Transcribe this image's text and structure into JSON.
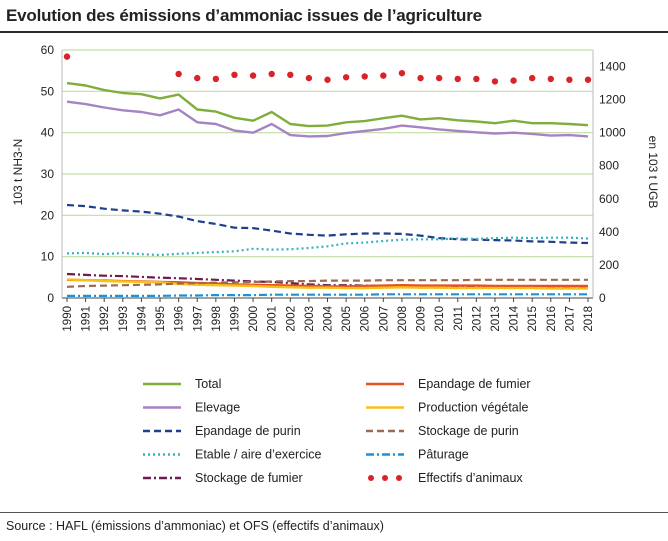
{
  "page": {
    "title": "Evolution des émissions d’ammoniac issues de l’agriculture",
    "source": "Source : HAFL (émissions d’ammoniac) et OFS (effectifs d’animaux)"
  },
  "chart_data": {
    "type": "line",
    "title": "Evolution des émissions d’ammoniac issues de l’agriculture",
    "ylabel": "103 t NH3-N",
    "y2label": "en 103 t UGB",
    "ylim": [
      0,
      60
    ],
    "y2lim": [
      0,
      1500
    ],
    "yticks": [
      0,
      10,
      20,
      30,
      40,
      50,
      60
    ],
    "y2ticks": [
      0,
      200,
      400,
      600,
      800,
      1000,
      1200,
      1400
    ],
    "grid": true,
    "legend_position": "bottom",
    "x": [
      "1990",
      "1991",
      "1992",
      "1993",
      "1994",
      "1995",
      "1996",
      "1997",
      "1998",
      "1999",
      "2000",
      "2001",
      "2002",
      "2003",
      "2004",
      "2005",
      "2006",
      "2007",
      "2008",
      "2009",
      "2010",
      "2011",
      "2012",
      "2013",
      "2014",
      "2015",
      "2016",
      "2017",
      "2018"
    ],
    "series": [
      {
        "name": "Total",
        "color": "#7fae3c",
        "style": "solid",
        "axis": "left",
        "values": [
          52.0,
          51.4,
          50.3,
          49.6,
          49.3,
          48.3,
          49.2,
          45.6,
          45.1,
          43.6,
          42.9,
          45.0,
          42.1,
          41.6,
          41.7,
          42.5,
          42.8,
          43.5,
          44.1,
          43.2,
          43.5,
          43.0,
          42.7,
          42.3,
          42.9,
          42.3,
          42.3,
          42.1,
          41.8
        ]
      },
      {
        "name": "Elevage",
        "color": "#a584c4",
        "style": "solid",
        "axis": "left",
        "values": [
          47.5,
          46.9,
          46.1,
          45.4,
          45.0,
          44.2,
          45.6,
          42.5,
          42.1,
          40.5,
          40.0,
          42.1,
          39.4,
          39.1,
          39.2,
          39.9,
          40.4,
          40.9,
          41.7,
          41.3,
          40.8,
          40.4,
          40.1,
          39.8,
          40.0,
          39.7,
          39.3,
          39.4,
          39.1
        ]
      },
      {
        "name": "Epandage de purin",
        "color": "#1e3f8c",
        "style": "dashed",
        "axis": "left",
        "values": [
          22.5,
          22.2,
          21.6,
          21.2,
          20.9,
          20.4,
          19.7,
          18.6,
          17.9,
          17.0,
          16.9,
          16.3,
          15.6,
          15.3,
          15.1,
          15.4,
          15.6,
          15.6,
          15.5,
          15.1,
          14.5,
          14.2,
          14.1,
          14.0,
          13.9,
          13.7,
          13.6,
          13.4,
          13.3
        ]
      },
      {
        "name": "Etable / aire d’exercice",
        "color": "#36b0c2",
        "style": "dotted",
        "axis": "left",
        "values": [
          10.8,
          10.9,
          10.6,
          10.9,
          10.6,
          10.4,
          10.7,
          10.9,
          11.1,
          11.3,
          11.9,
          11.7,
          11.8,
          12.1,
          12.5,
          13.2,
          13.4,
          13.8,
          14.1,
          14.2,
          14.2,
          14.4,
          14.3,
          14.5,
          14.6,
          14.5,
          14.6,
          14.6,
          14.4
        ]
      },
      {
        "name": "Stockage de fumier",
        "color": "#6b1d4e",
        "style": "dashdot",
        "axis": "left",
        "values": [
          5.8,
          5.6,
          5.4,
          5.3,
          5.1,
          4.9,
          4.8,
          4.6,
          4.4,
          4.2,
          4.0,
          3.9,
          3.6,
          3.3,
          3.1,
          3.1,
          3.0,
          3.0,
          2.9,
          2.9,
          2.8,
          2.8,
          2.7,
          2.6,
          2.6,
          2.5,
          2.5,
          2.4,
          2.4
        ]
      },
      {
        "name": "Epandage de fumier",
        "color": "#e8501c",
        "style": "solid",
        "axis": "left",
        "values": [
          4.4,
          4.3,
          4.2,
          4.1,
          4.0,
          3.9,
          3.8,
          3.6,
          3.5,
          3.3,
          3.2,
          3.1,
          3.0,
          2.9,
          2.8,
          2.8,
          2.9,
          3.0,
          3.1,
          3.0,
          3.0,
          3.0,
          3.0,
          2.9,
          2.9,
          2.9,
          2.9,
          2.9,
          2.9
        ]
      },
      {
        "name": "Production végétale",
        "color": "#f6c21a",
        "style": "solid",
        "axis": "left",
        "values": [
          4.5,
          4.3,
          4.1,
          4.0,
          3.9,
          3.8,
          3.4,
          3.2,
          3.1,
          3.0,
          2.9,
          2.7,
          2.6,
          2.5,
          2.5,
          2.4,
          2.4,
          2.5,
          2.6,
          2.5,
          2.5,
          2.4,
          2.4,
          2.4,
          2.4,
          2.4,
          2.3,
          2.3,
          2.3
        ]
      },
      {
        "name": "Stockage de purin",
        "color": "#9a6b50",
        "style": "dashed",
        "axis": "left",
        "values": [
          2.7,
          2.9,
          3.0,
          3.1,
          3.2,
          3.3,
          3.5,
          3.6,
          3.7,
          3.8,
          3.9,
          4.0,
          4.1,
          4.1,
          4.2,
          4.2,
          4.2,
          4.3,
          4.3,
          4.3,
          4.3,
          4.3,
          4.4,
          4.4,
          4.4,
          4.4,
          4.4,
          4.4,
          4.4
        ]
      },
      {
        "name": "Pâturage",
        "color": "#1b92d6",
        "style": "dashdot",
        "axis": "left",
        "values": [
          0.5,
          0.5,
          0.5,
          0.5,
          0.5,
          0.5,
          0.6,
          0.6,
          0.7,
          0.7,
          0.7,
          0.8,
          0.8,
          0.8,
          0.8,
          0.8,
          0.8,
          0.9,
          0.9,
          0.9,
          0.9,
          0.9,
          0.9,
          0.9,
          0.9,
          0.9,
          0.9,
          0.9,
          0.9
        ]
      },
      {
        "name": "Effectifs d’animaux",
        "color": "#d9232a",
        "style": "dots",
        "axis": "right",
        "values": [
          1460,
          null,
          null,
          null,
          null,
          null,
          1355,
          1330,
          1325,
          1350,
          1345,
          1355,
          1350,
          1330,
          1320,
          1335,
          1340,
          1345,
          1360,
          1330,
          1330,
          1325,
          1325,
          1310,
          1315,
          1330,
          1325,
          1320,
          1320
        ]
      }
    ]
  }
}
